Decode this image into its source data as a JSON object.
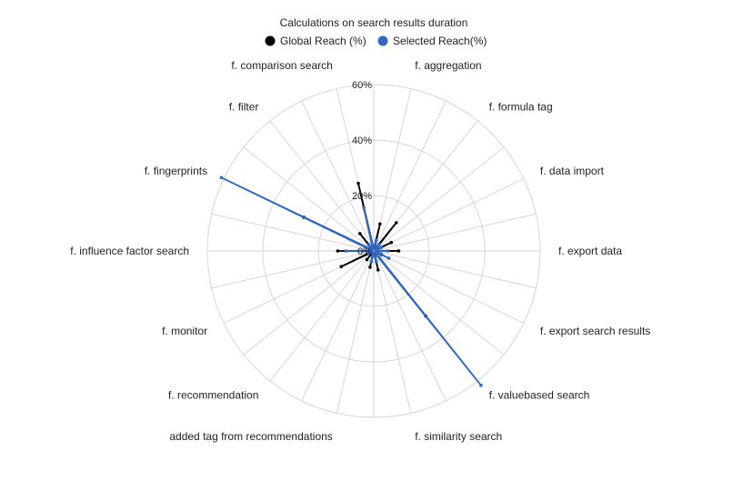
{
  "chart_data": {
    "type": "radar",
    "title": "Calculations on search results duration",
    "legend_position": "top",
    "grid": true,
    "rlim": [
      0,
      60
    ],
    "ticks": [
      "0%",
      "20%",
      "40%",
      "60%"
    ],
    "tick_values": [
      0,
      20,
      40,
      60
    ],
    "categories": [
      "f.  aggregation",
      "f.  formula tag",
      "f.  data import",
      "f.  export data",
      "f.  export search results",
      "f.  valuebased search",
      "f.  similarity search",
      "added tag from recommendations",
      "f.  recommendation",
      "f.  monitor",
      "f.  influence factor search",
      "f.  fingerprints",
      "f.  filter",
      "f.  comparison search"
    ],
    "series": [
      {
        "name": "Global Reach (%)",
        "color": "#000000",
        "values": [
          10,
          13,
          7,
          9,
          3,
          30,
          7,
          6,
          4,
          13,
          13,
          28,
          8,
          25
        ]
      },
      {
        "name": "Selected Reach(%)",
        "color": "#2f67c7",
        "values": [
          4,
          3,
          3,
          5,
          6,
          62,
          4,
          4,
          1,
          2,
          10,
          61,
          3,
          16
        ]
      }
    ]
  }
}
